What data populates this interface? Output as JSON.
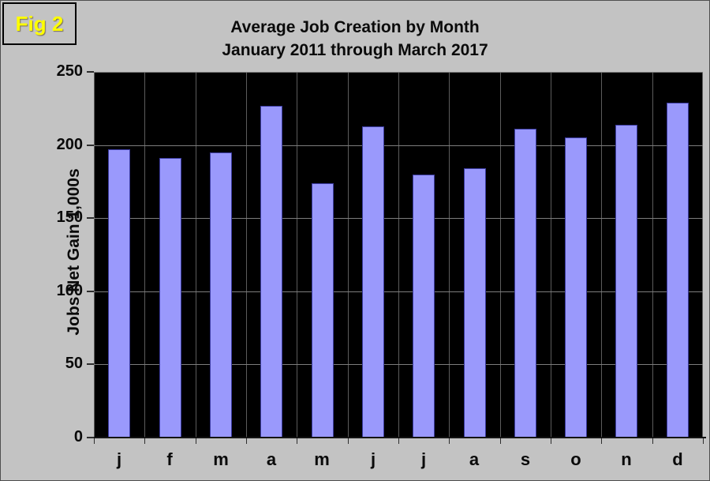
{
  "figure": {
    "label": "Fig 2"
  },
  "chart_data": {
    "type": "bar",
    "title": "Average Job Creation by Month",
    "subtitle": "January 2011 through March 2017",
    "ylabel": "Jobs Net Gain 1,000s",
    "xlabel": "",
    "categories": [
      "j",
      "f",
      "m",
      "a",
      "m",
      "j",
      "j",
      "a",
      "s",
      "o",
      "n",
      "d"
    ],
    "values": [
      197,
      191,
      195,
      227,
      174,
      213,
      180,
      184,
      211,
      205,
      214,
      229
    ],
    "ylim": [
      0,
      250
    ],
    "yticks": [
      0,
      50,
      100,
      150,
      200,
      250
    ],
    "grid": true,
    "legend": "none",
    "colors": {
      "canvas_bg": "#c3c3c3",
      "plot_bg": "#000000",
      "bar_fill": "#9a99fc",
      "bar_border": "#3c3ca0",
      "h_gridline": "#7d7d7d",
      "v_gridline": "#5c5c5c",
      "text": "#0a0a0a",
      "fig_label": "#ffff00"
    }
  }
}
